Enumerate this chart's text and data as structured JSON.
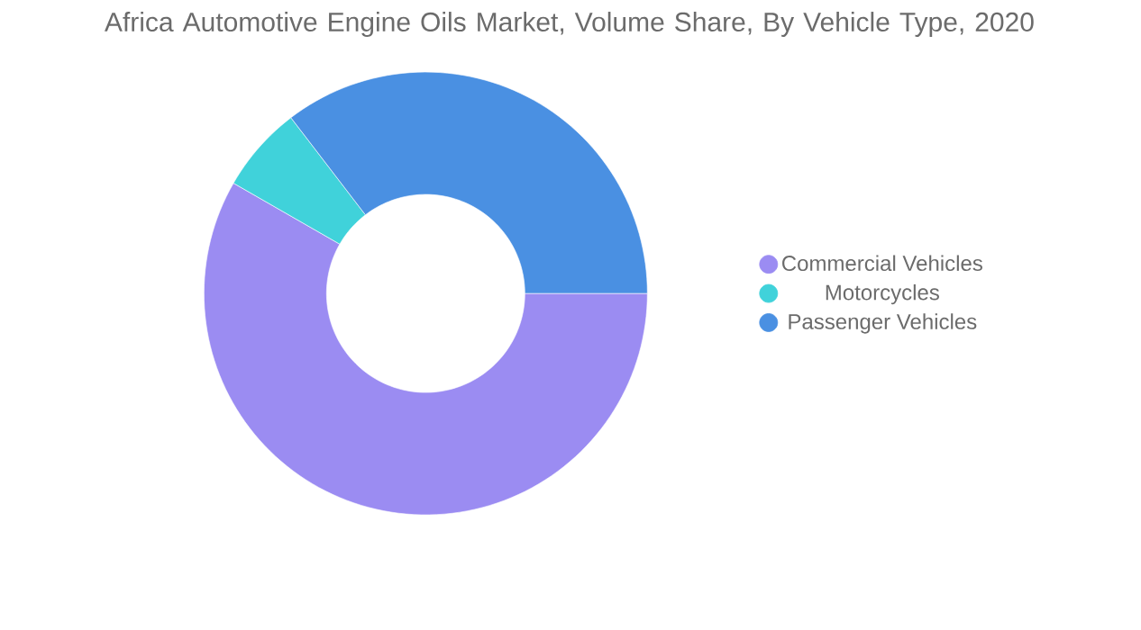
{
  "chart_data": {
    "type": "donut",
    "title": "Africa Automotive Engine Oils Market, Volume Share, By Vehicle Type, 2020",
    "categories": [
      "Commercial Vehicles",
      "Motorcycles",
      "Passenger Vehicles"
    ],
    "values": [
      58.3,
      6.3,
      35.4
    ],
    "colors": [
      "#9b8cf2",
      "#40d2da",
      "#4a90e2"
    ],
    "legend": "right"
  }
}
